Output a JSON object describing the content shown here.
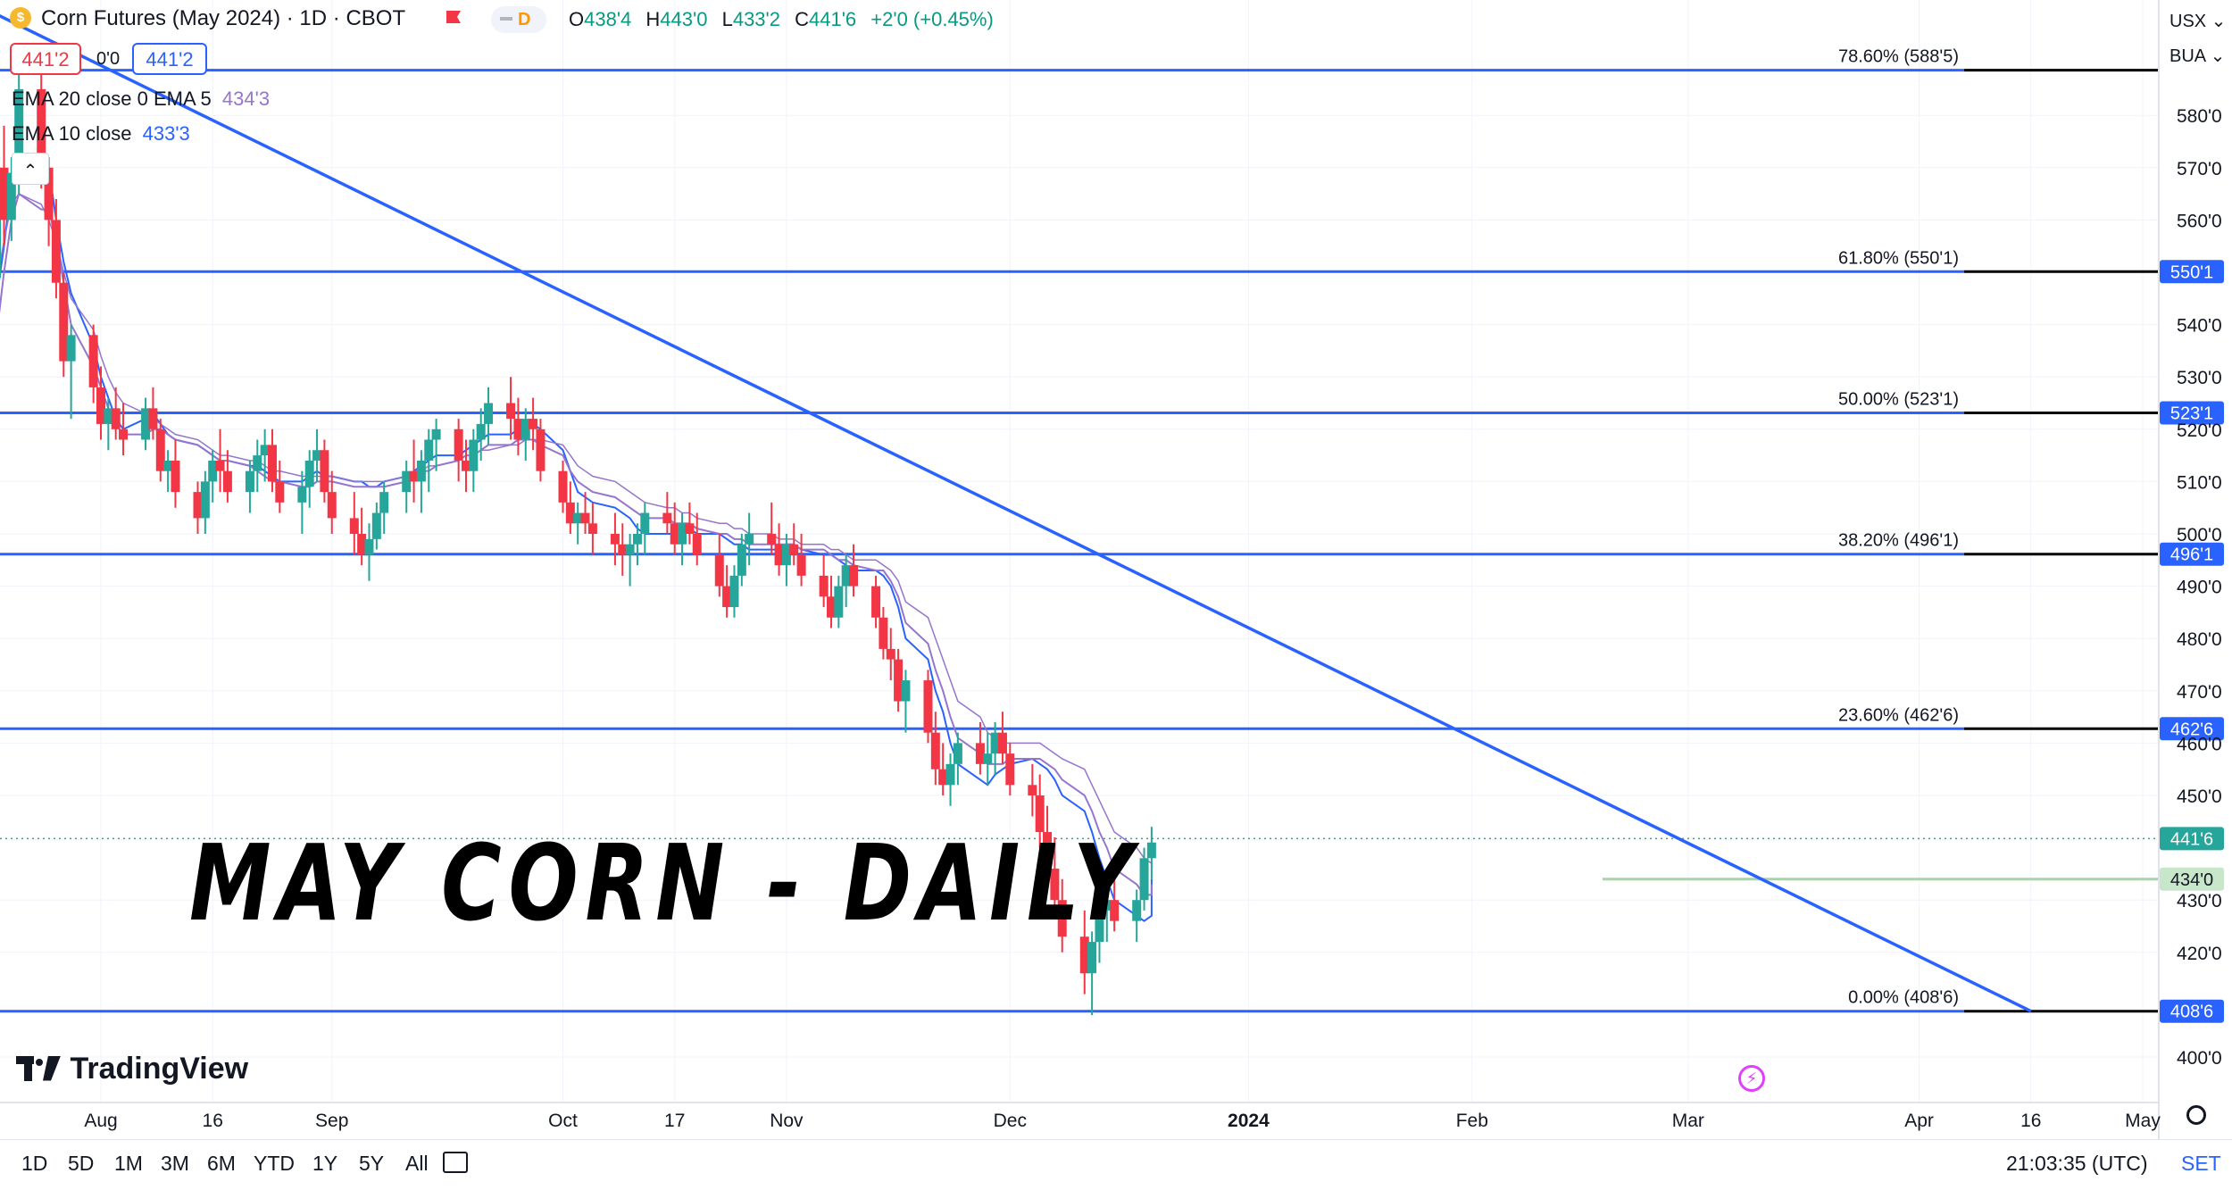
{
  "header": {
    "symbol_title": "Corn Futures (May 2024) · 1D · CBOT",
    "interval_badge": "D",
    "ohlc": {
      "o_label": "O",
      "o": "438'4",
      "h_label": "H",
      "h": "443'0",
      "l_label": "L",
      "l": "433'2",
      "c_label": "C",
      "c": "441'6",
      "change": "+2'0 (+0.45%)"
    },
    "sell_price": "441'2",
    "spread": "0'0",
    "buy_price": "441'2"
  },
  "indicators": {
    "ema_20_label": "EMA 20 close 0 EMA 5",
    "ema_20_value": "434'3",
    "ema_10_label": "EMA 10 close",
    "ema_10_value": "433'3",
    "collapse_glyph": "⌃"
  },
  "overlay_text": "MAY CORN - DAILY",
  "brand": "TradingView",
  "right_top": {
    "currency": "USX ⌄",
    "unit": "BUA ⌄"
  },
  "bottom_bar": {
    "timeframes": [
      "1D",
      "5D",
      "1M",
      "3M",
      "6M",
      "YTD",
      "1Y",
      "5Y",
      "All"
    ],
    "clock": "21:03:35 (UTC)",
    "settings": "SET"
  },
  "colors": {
    "up": "#26a69a",
    "down": "#f23645",
    "fib_line": "#2962ff",
    "trendline": "#2962ff",
    "ema_fast": "#2962ff",
    "ema_slow": "#9575cd",
    "ema_marker": "#4caf50"
  },
  "chart_data": {
    "type": "candlestick",
    "title": "Corn Futures (May 2024) · 1D · CBOT",
    "price_axis": {
      "ticks": [
        "580'0",
        "570'0",
        "560'0",
        "540'0",
        "530'0",
        "520'0",
        "510'0",
        "500'0",
        "490'0",
        "480'0",
        "470'0",
        "460'0",
        "450'0",
        "430'0",
        "420'0",
        "400'0"
      ],
      "tick_values": [
        580,
        570,
        560,
        540,
        530,
        520,
        510,
        500,
        490,
        480,
        470,
        460,
        450,
        430,
        420,
        400
      ],
      "ylim": [
        394,
        599
      ]
    },
    "time_axis": {
      "labels": [
        "Aug",
        "16",
        "Sep",
        "Oct",
        "17",
        "Nov",
        "Dec",
        "2024",
        "Feb",
        "Mar",
        "Apr",
        "16",
        "May"
      ],
      "dates": [
        "2023-08-01",
        "2023-08-16",
        "2023-09-01",
        "2023-10-02",
        "2023-10-17",
        "2023-11-01",
        "2023-12-01",
        "2024-01-02",
        "2024-02-01",
        "2024-03-01",
        "2024-04-01",
        "2024-04-16",
        "2024-05-01"
      ]
    },
    "fib_levels": [
      {
        "ratio": "78.60%",
        "label": "78.60% (588'5)",
        "price": 588.625,
        "tag": ""
      },
      {
        "ratio": "61.80%",
        "label": "61.80% (550'1)",
        "price": 550.125,
        "tag": "550'1"
      },
      {
        "ratio": "50.00%",
        "label": "50.00% (523'1)",
        "price": 523.125,
        "tag": "523'1"
      },
      {
        "ratio": "38.20%",
        "label": "38.20% (496'1)",
        "price": 496.125,
        "tag": "496'1"
      },
      {
        "ratio": "23.60%",
        "label": "23.60% (462'6)",
        "price": 462.75,
        "tag": "462'6"
      },
      {
        "ratio": "0.00%",
        "label": "0.00% (408'6)",
        "price": 408.75,
        "tag": "408'6"
      }
    ],
    "last_price": {
      "value": 441.75,
      "tag": "441'6"
    },
    "ema_marker": {
      "value": 434.0,
      "tag": "434'0"
    },
    "trendline": {
      "from": {
        "date": "2023-07-17",
        "price": 600
      },
      "to": {
        "date": "2024-04-16",
        "price": 408.75
      }
    },
    "series": [
      {
        "name": "EMA 5",
        "date_range": [
          "2023-07-18",
          "2024-03-12"
        ],
        "values": [
          545,
          555,
          567,
          572,
          568,
          570,
          560,
          552,
          546,
          536,
          530,
          526,
          522,
          520,
          522,
          523,
          521,
          519,
          518,
          517,
          516,
          515,
          514,
          514,
          513,
          513,
          512,
          511,
          510,
          510,
          511,
          512,
          511,
          511,
          510,
          510,
          509,
          509,
          510,
          511,
          512,
          513,
          514,
          515,
          515,
          516,
          517,
          518,
          519,
          519,
          520,
          521,
          521,
          520,
          516,
          512,
          508,
          507,
          506,
          505,
          504,
          503,
          501,
          500,
          500,
          500,
          501,
          501,
          500,
          500,
          499,
          498,
          498,
          497,
          497,
          497,
          498,
          498,
          497,
          496,
          496,
          495,
          494,
          493,
          493,
          492,
          490,
          486,
          480,
          476,
          470,
          466,
          460,
          456,
          453,
          452,
          454,
          455,
          456,
          457,
          456,
          455,
          453,
          450,
          447,
          443,
          438,
          434,
          430,
          427,
          426,
          427,
          429,
          432,
          434
        ]
      },
      {
        "name": "EMA 10",
        "date_range": [
          "2023-07-18",
          "2024-03-12"
        ],
        "values": [
          538,
          550,
          560,
          565,
          562,
          562,
          556,
          548,
          540,
          532,
          528,
          524,
          521,
          519,
          519,
          520,
          520,
          519,
          518,
          517,
          516,
          515,
          514,
          514,
          513,
          512,
          511,
          510,
          510,
          509,
          509,
          510,
          510,
          510,
          509,
          509,
          509,
          509,
          509,
          510,
          511,
          512,
          512,
          513,
          514,
          515,
          515,
          516,
          517,
          517,
          518,
          518,
          518,
          517,
          515,
          512,
          510,
          509,
          508,
          507,
          506,
          505,
          504,
          503,
          503,
          502,
          502,
          502,
          501,
          500,
          500,
          499,
          499,
          498,
          498,
          498,
          498,
          498,
          497,
          497,
          496,
          495,
          495,
          494,
          493,
          493,
          491,
          488,
          483,
          479,
          474,
          470,
          465,
          461,
          458,
          456,
          456,
          456,
          457,
          457,
          457,
          456,
          455,
          453,
          450,
          447,
          443,
          440,
          436,
          433,
          431,
          431,
          432,
          433,
          433
        ]
      },
      {
        "name": "EMA 20",
        "date_range": [
          "2023-07-18",
          "2024-03-12"
        ],
        "values": [
          548,
          556,
          563,
          565,
          563,
          560,
          556,
          550,
          545,
          539,
          534,
          530,
          527,
          525,
          523,
          522,
          521,
          520,
          519,
          518,
          517,
          516,
          515,
          515,
          514,
          514,
          513,
          512,
          512,
          511,
          511,
          511,
          511,
          511,
          510,
          510,
          510,
          510,
          510,
          511,
          512,
          512,
          513,
          513,
          514,
          515,
          515,
          516,
          516,
          517,
          517,
          518,
          518,
          518,
          517,
          515,
          513,
          512,
          511,
          510,
          509,
          508,
          507,
          506,
          505,
          505,
          504,
          504,
          503,
          502,
          502,
          501,
          501,
          500,
          500,
          499,
          499,
          499,
          498,
          498,
          497,
          497,
          496,
          495,
          495,
          494,
          493,
          491,
          487,
          484,
          480,
          476,
          472,
          468,
          465,
          462,
          461,
          460,
          460,
          460,
          460,
          459,
          458,
          457,
          455,
          452,
          449,
          446,
          443,
          440,
          438,
          437,
          436,
          436,
          435
        ]
      }
    ],
    "candles_note": "Daily OHLC approximated; dates from 2023-07-18 to 2024-03-12",
    "candles": [
      [
        549,
        575,
        548,
        570
      ],
      [
        570,
        578,
        555,
        560
      ],
      [
        560,
        572,
        556,
        569
      ],
      [
        569,
        590,
        565,
        585
      ],
      [
        585,
        590,
        566,
        570
      ],
      [
        570,
        572,
        555,
        560
      ],
      [
        560,
        564,
        545,
        548
      ],
      [
        548,
        550,
        530,
        533
      ],
      [
        533,
        540,
        522,
        538
      ],
      [
        538,
        540,
        525,
        528
      ],
      [
        528,
        532,
        518,
        521
      ],
      [
        521,
        526,
        516,
        524
      ],
      [
        524,
        528,
        518,
        520
      ],
      [
        520,
        525,
        515,
        518
      ],
      [
        518,
        526,
        516,
        524
      ],
      [
        524,
        528,
        518,
        520
      ],
      [
        520,
        522,
        510,
        512
      ],
      [
        512,
        516,
        508,
        514
      ],
      [
        514,
        518,
        505,
        508
      ],
      [
        508,
        510,
        500,
        503
      ],
      [
        503,
        512,
        500,
        510
      ],
      [
        510,
        516,
        506,
        514
      ],
      [
        514,
        520,
        508,
        512
      ],
      [
        512,
        516,
        506,
        508
      ],
      [
        508,
        514,
        504,
        512
      ],
      [
        512,
        518,
        508,
        515
      ],
      [
        515,
        520,
        510,
        517
      ],
      [
        517,
        520,
        508,
        510
      ],
      [
        510,
        514,
        504,
        506
      ],
      [
        506,
        512,
        500,
        509
      ],
      [
        509,
        516,
        505,
        514
      ],
      [
        514,
        520,
        510,
        516
      ],
      [
        516,
        518,
        506,
        508
      ],
      [
        508,
        512,
        500,
        503
      ],
      [
        503,
        508,
        496,
        500
      ],
      [
        500,
        505,
        494,
        496
      ],
      [
        496,
        502,
        491,
        499
      ],
      [
        499,
        506,
        497,
        504
      ],
      [
        504,
        510,
        500,
        508
      ],
      [
        508,
        514,
        504,
        512
      ],
      [
        512,
        518,
        506,
        510
      ],
      [
        510,
        516,
        504,
        514
      ],
      [
        514,
        520,
        508,
        518
      ],
      [
        518,
        522,
        512,
        520
      ],
      [
        520,
        522,
        510,
        514
      ],
      [
        514,
        518,
        508,
        512
      ],
      [
        512,
        520,
        508,
        518
      ],
      [
        518,
        524,
        514,
        521
      ],
      [
        521,
        528,
        517,
        525
      ],
      [
        525,
        530,
        518,
        522
      ],
      [
        522,
        526,
        515,
        518
      ],
      [
        518,
        524,
        514,
        522
      ],
      [
        522,
        526,
        516,
        520
      ],
      [
        520,
        522,
        510,
        512
      ],
      [
        512,
        514,
        504,
        506
      ],
      [
        506,
        510,
        500,
        502
      ],
      [
        502,
        506,
        498,
        504
      ],
      [
        504,
        508,
        500,
        502
      ],
      [
        502,
        506,
        496,
        500
      ],
      [
        500,
        504,
        494,
        498
      ],
      [
        498,
        502,
        492,
        496
      ],
      [
        496,
        500,
        490,
        498
      ],
      [
        498,
        502,
        494,
        500
      ],
      [
        500,
        506,
        496,
        504
      ],
      [
        504,
        508,
        500,
        502
      ],
      [
        502,
        506,
        496,
        498
      ],
      [
        498,
        504,
        494,
        502
      ],
      [
        502,
        506,
        498,
        500
      ],
      [
        500,
        504,
        494,
        496
      ],
      [
        496,
        500,
        488,
        490
      ],
      [
        490,
        494,
        484,
        486
      ],
      [
        486,
        494,
        484,
        492
      ],
      [
        492,
        500,
        490,
        498
      ],
      [
        498,
        504,
        494,
        500
      ],
      [
        500,
        506,
        496,
        498
      ],
      [
        498,
        502,
        492,
        494
      ],
      [
        494,
        500,
        490,
        498
      ],
      [
        498,
        502,
        494,
        496
      ],
      [
        496,
        500,
        490,
        492
      ],
      [
        492,
        496,
        486,
        488
      ],
      [
        488,
        492,
        482,
        484
      ],
      [
        484,
        492,
        482,
        490
      ],
      [
        490,
        496,
        486,
        494
      ],
      [
        494,
        498,
        488,
        490
      ],
      [
        490,
        492,
        482,
        484
      ],
      [
        484,
        486,
        476,
        478
      ],
      [
        478,
        482,
        472,
        476
      ],
      [
        476,
        478,
        466,
        468
      ],
      [
        468,
        474,
        462,
        472
      ],
      [
        472,
        474,
        460,
        462
      ],
      [
        462,
        466,
        452,
        455
      ],
      [
        455,
        460,
        450,
        452
      ],
      [
        452,
        458,
        448,
        456
      ],
      [
        456,
        462,
        452,
        460
      ],
      [
        460,
        464,
        454,
        456
      ],
      [
        456,
        462,
        452,
        458
      ],
      [
        458,
        464,
        454,
        462
      ],
      [
        462,
        466,
        456,
        458
      ],
      [
        458,
        460,
        450,
        452
      ],
      [
        452,
        456,
        446,
        450
      ],
      [
        450,
        454,
        440,
        443
      ],
      [
        443,
        448,
        434,
        436
      ],
      [
        436,
        442,
        428,
        430
      ],
      [
        430,
        434,
        420,
        423
      ],
      [
        423,
        428,
        412,
        416
      ],
      [
        416,
        424,
        408,
        422
      ],
      [
        422,
        430,
        418,
        428
      ],
      [
        428,
        434,
        422,
        430
      ],
      [
        430,
        434,
        424,
        426
      ],
      [
        426,
        432,
        422,
        430
      ],
      [
        430,
        440,
        428,
        438
      ],
      [
        438,
        444,
        434,
        441
      ]
    ]
  }
}
